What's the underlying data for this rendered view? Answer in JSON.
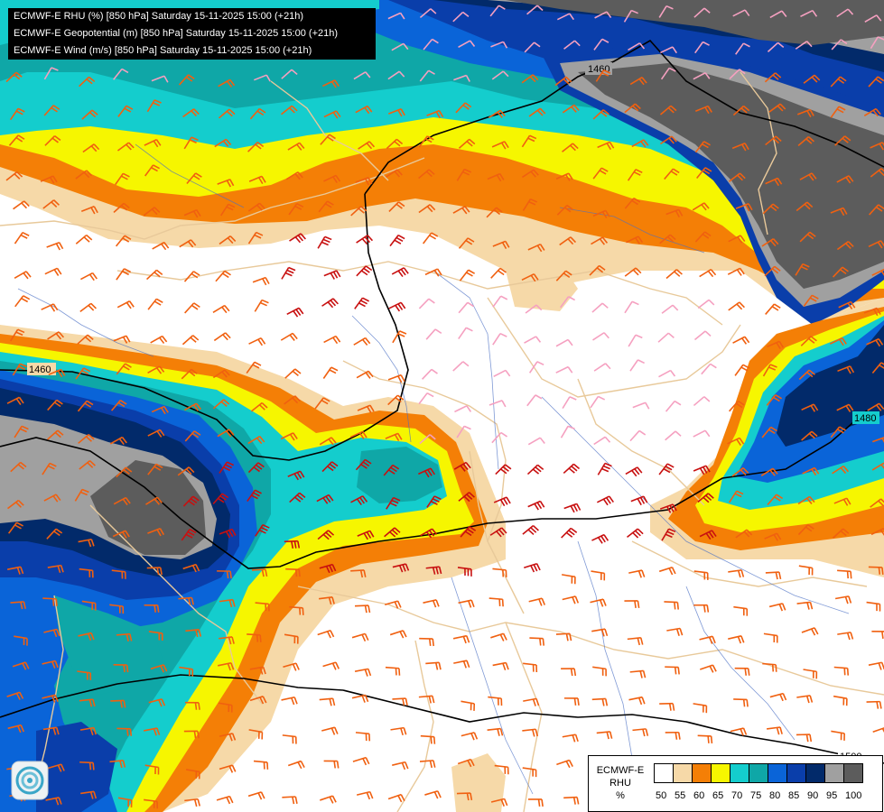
{
  "header": {
    "lines": [
      "ECMWF-E RHU (%) [850 hPa] Saturday 15-11-2025 15:00 (+21h)",
      "ECMWF-E Geopotential (m) [850 hPa] Saturday 15-11-2025 15:00 (+21h)",
      "ECMWF-E Wind (m/s) [850 hPa] Saturday 15-11-2025 15:00 (+21h)"
    ]
  },
  "contours": {
    "labels": [
      "1460",
      "1460",
      "1480",
      "1500"
    ],
    "color": "#000000"
  },
  "legend": {
    "title_lines": [
      "ECMWF-E",
      "RHU",
      "%"
    ],
    "ticks": [
      "50",
      "55",
      "60",
      "65",
      "70",
      "75",
      "80",
      "85",
      "90",
      "95",
      "100"
    ],
    "colors": [
      "#ffffff",
      "#f6d9a8",
      "#f47f06",
      "#f6f600",
      "#14cdcd",
      "#0fa7a7",
      "#0a64d8",
      "#0a3eaa",
      "#022a6a",
      "#a0a0a0",
      "#5c5c5c"
    ]
  },
  "palette": {
    "tan": "#f6d9a8",
    "orange": "#f47f06",
    "yellow": "#f6f600",
    "cyan": "#14cdcd",
    "teal": "#0fa7a7",
    "blue": "#0a64d8",
    "darkblue": "#0a3eaa",
    "navy": "#022a6a",
    "lightgray": "#a0a0a0",
    "darkgray": "#5c5c5c",
    "border": "#e8c99a",
    "river": "#4a6fc4",
    "barb_light": "#f5a0c0",
    "barb_orange": "#f06010",
    "barb_red": "#c81010"
  },
  "logo": {
    "icon": "ecmwf-swirl-icon"
  }
}
